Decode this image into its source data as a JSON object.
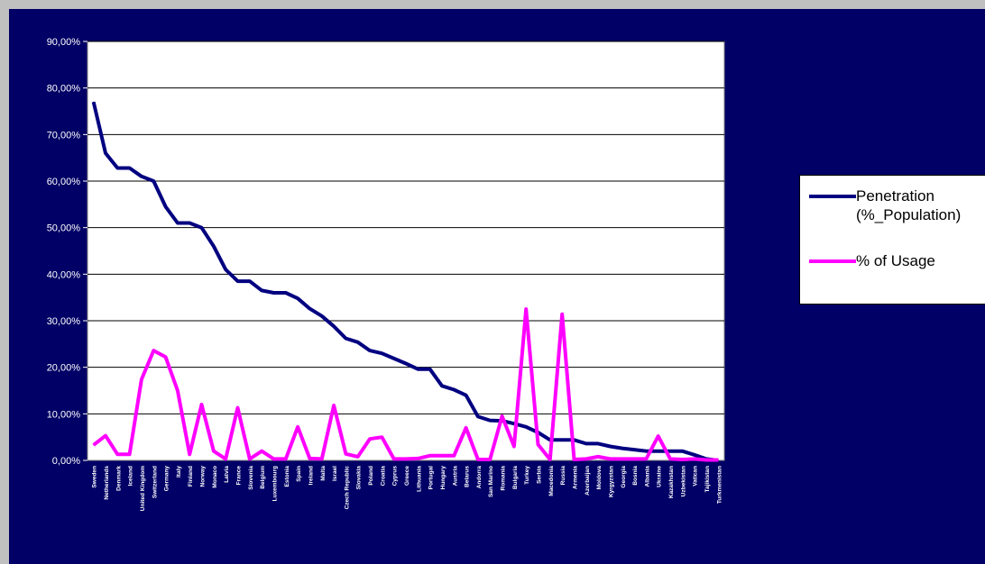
{
  "chart_data": {
    "type": "line",
    "title": "",
    "xlabel": "",
    "ylabel": "",
    "ylim": [
      0,
      90
    ],
    "y_ticks": [
      "0,00%",
      "10,00%",
      "20,00%",
      "30,00%",
      "40,00%",
      "50,00%",
      "60,00%",
      "70,00%",
      "80,00%",
      "90,00%"
    ],
    "grid": "horizontal",
    "legend_position": "right",
    "categories": [
      "Sweden",
      "Netherlands",
      "Denmark",
      "Iceland",
      "United Kingdom",
      "Switzerland",
      "Germany",
      "Italy",
      "Finland",
      "Norway",
      "Monaco",
      "Latvia",
      "France",
      "Slovenia",
      "Belgium",
      "Luxembourg",
      "Estonia",
      "Spain",
      "Ireland",
      "Malta",
      "Israel",
      "Czech Republic",
      "Slovakia",
      "Poland",
      "Croatia",
      "Cyprus",
      "Greece",
      "Lithuania",
      "Portugal",
      "Hungary",
      "Austria",
      "Belarus",
      "Andorra",
      "San Marino",
      "Romania",
      "Bulgaria",
      "Turkey",
      "Serbia",
      "Macedonia",
      "Russia",
      "Armenia",
      "Azerbaijan",
      "Moldova",
      "Kyrgyzstan",
      "Georgia",
      "Bosnia",
      "Albania",
      "Ukraine",
      "Kazakhstan",
      "Uzbekistan",
      "Vatican",
      "Tajikistan",
      "Turkmenistan"
    ],
    "series": [
      {
        "name": "Penetration (%_Population)",
        "color": "#000080",
        "values": [
          77,
          66,
          62.8,
          62.8,
          61,
          60,
          54.5,
          51,
          51,
          50,
          46,
          41,
          38.5,
          38.5,
          36.5,
          36,
          36,
          34.8,
          32.6,
          31,
          28.8,
          26.2,
          25.4,
          23.6,
          23,
          21.9,
          20.8,
          19.6,
          19.6,
          16,
          15.2,
          14,
          9.4,
          8.6,
          8.5,
          7.9,
          7.2,
          6,
          4.4,
          4.4,
          4.4,
          3.6,
          3.6,
          3,
          2.6,
          2.3,
          2,
          2,
          2,
          2,
          1.2,
          0.3,
          0
        ]
      },
      {
        "name": "% of Usage",
        "color": "#ff00ff",
        "values": [
          3.3,
          5.3,
          1.3,
          1.3,
          17.4,
          23.6,
          22.2,
          15,
          1.3,
          12,
          2,
          0.3,
          11.3,
          0.3,
          2,
          0.3,
          0.3,
          7.2,
          0.4,
          0.3,
          11.8,
          1.4,
          0.8,
          4.6,
          5,
          0.3,
          0.3,
          0.4,
          1,
          1,
          1,
          7,
          0.2,
          0.2,
          9.5,
          3,
          32.5,
          3.4,
          0.2,
          31.4,
          0.2,
          0.3,
          0.8,
          0.3,
          0.3,
          0.3,
          0.3,
          5.2,
          0.3,
          0.2,
          0.3,
          0.1,
          0.1
        ]
      }
    ]
  },
  "legend": {
    "penetration_label": "Penetration (%_Population)",
    "usage_label": "% of Usage"
  }
}
